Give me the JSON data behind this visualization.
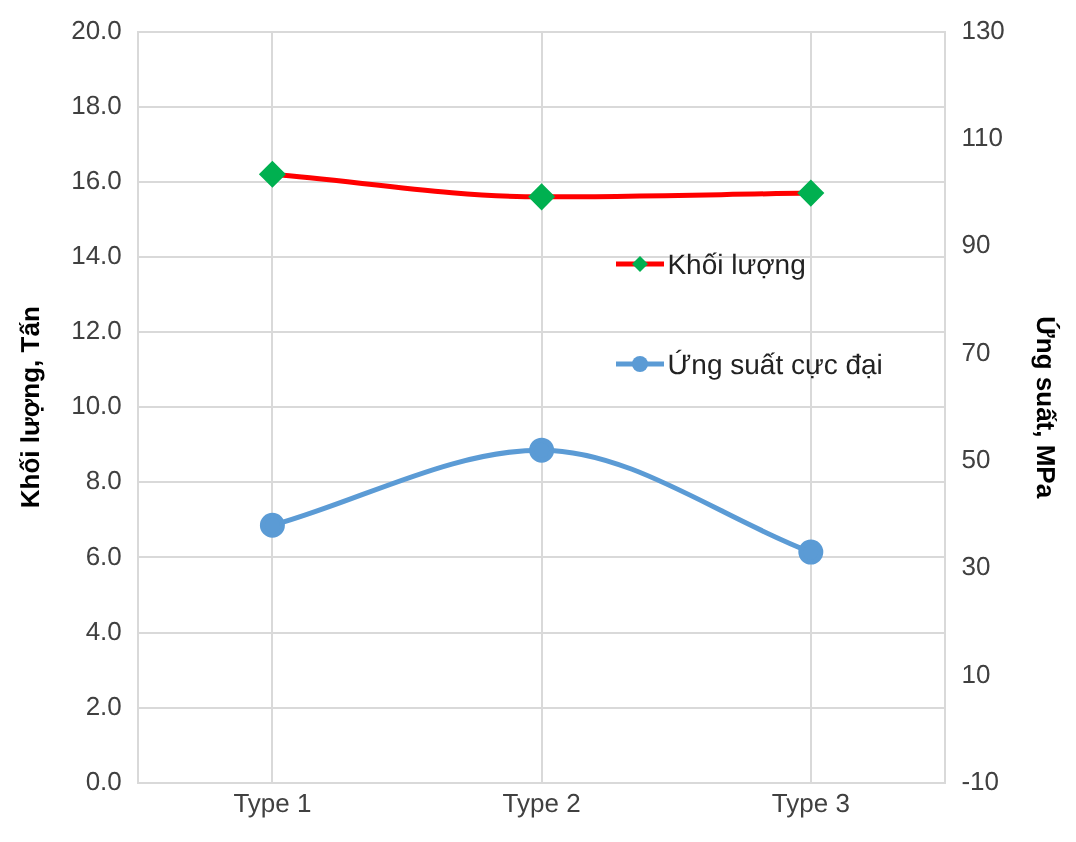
{
  "chart_data": {
    "type": "line",
    "categories": [
      "Type 1",
      "Type 2",
      "Type 3"
    ],
    "ylabel": "Khối lượng, Tấn",
    "y2label": "Ứng suất, MPa",
    "ylim": [
      0,
      20
    ],
    "yticks": [
      {
        "value": 0,
        "label": "0.0"
      },
      {
        "value": 2,
        "label": "2.0"
      },
      {
        "value": 4,
        "label": "4.0"
      },
      {
        "value": 6,
        "label": "6.0"
      },
      {
        "value": 8,
        "label": "8.0"
      },
      {
        "value": 10,
        "label": "10.0"
      },
      {
        "value": 12,
        "label": "12.0"
      },
      {
        "value": 14,
        "label": "14.0"
      },
      {
        "value": 16,
        "label": "16.0"
      },
      {
        "value": 18,
        "label": "18.0"
      },
      {
        "value": 20,
        "label": "20.0"
      }
    ],
    "y2lim": [
      -10,
      130
    ],
    "y2ticks": [
      -10,
      10,
      30,
      50,
      70,
      90,
      110,
      130
    ],
    "grid": true,
    "legend": "right",
    "series": [
      {
        "name": "Khối lượng",
        "color": "#ff0000",
        "colors": [
          "#00b050",
          "#00b050",
          "#00b050"
        ],
        "marker": "diamond",
        "values": [
          16.2,
          15.6,
          15.7
        ]
      },
      {
        "name": "Ứng suất cực đại",
        "color": "#5b9bd5",
        "marker": "circle",
        "axis": "y2",
        "values": [
          38,
          52,
          33
        ]
      }
    ]
  }
}
